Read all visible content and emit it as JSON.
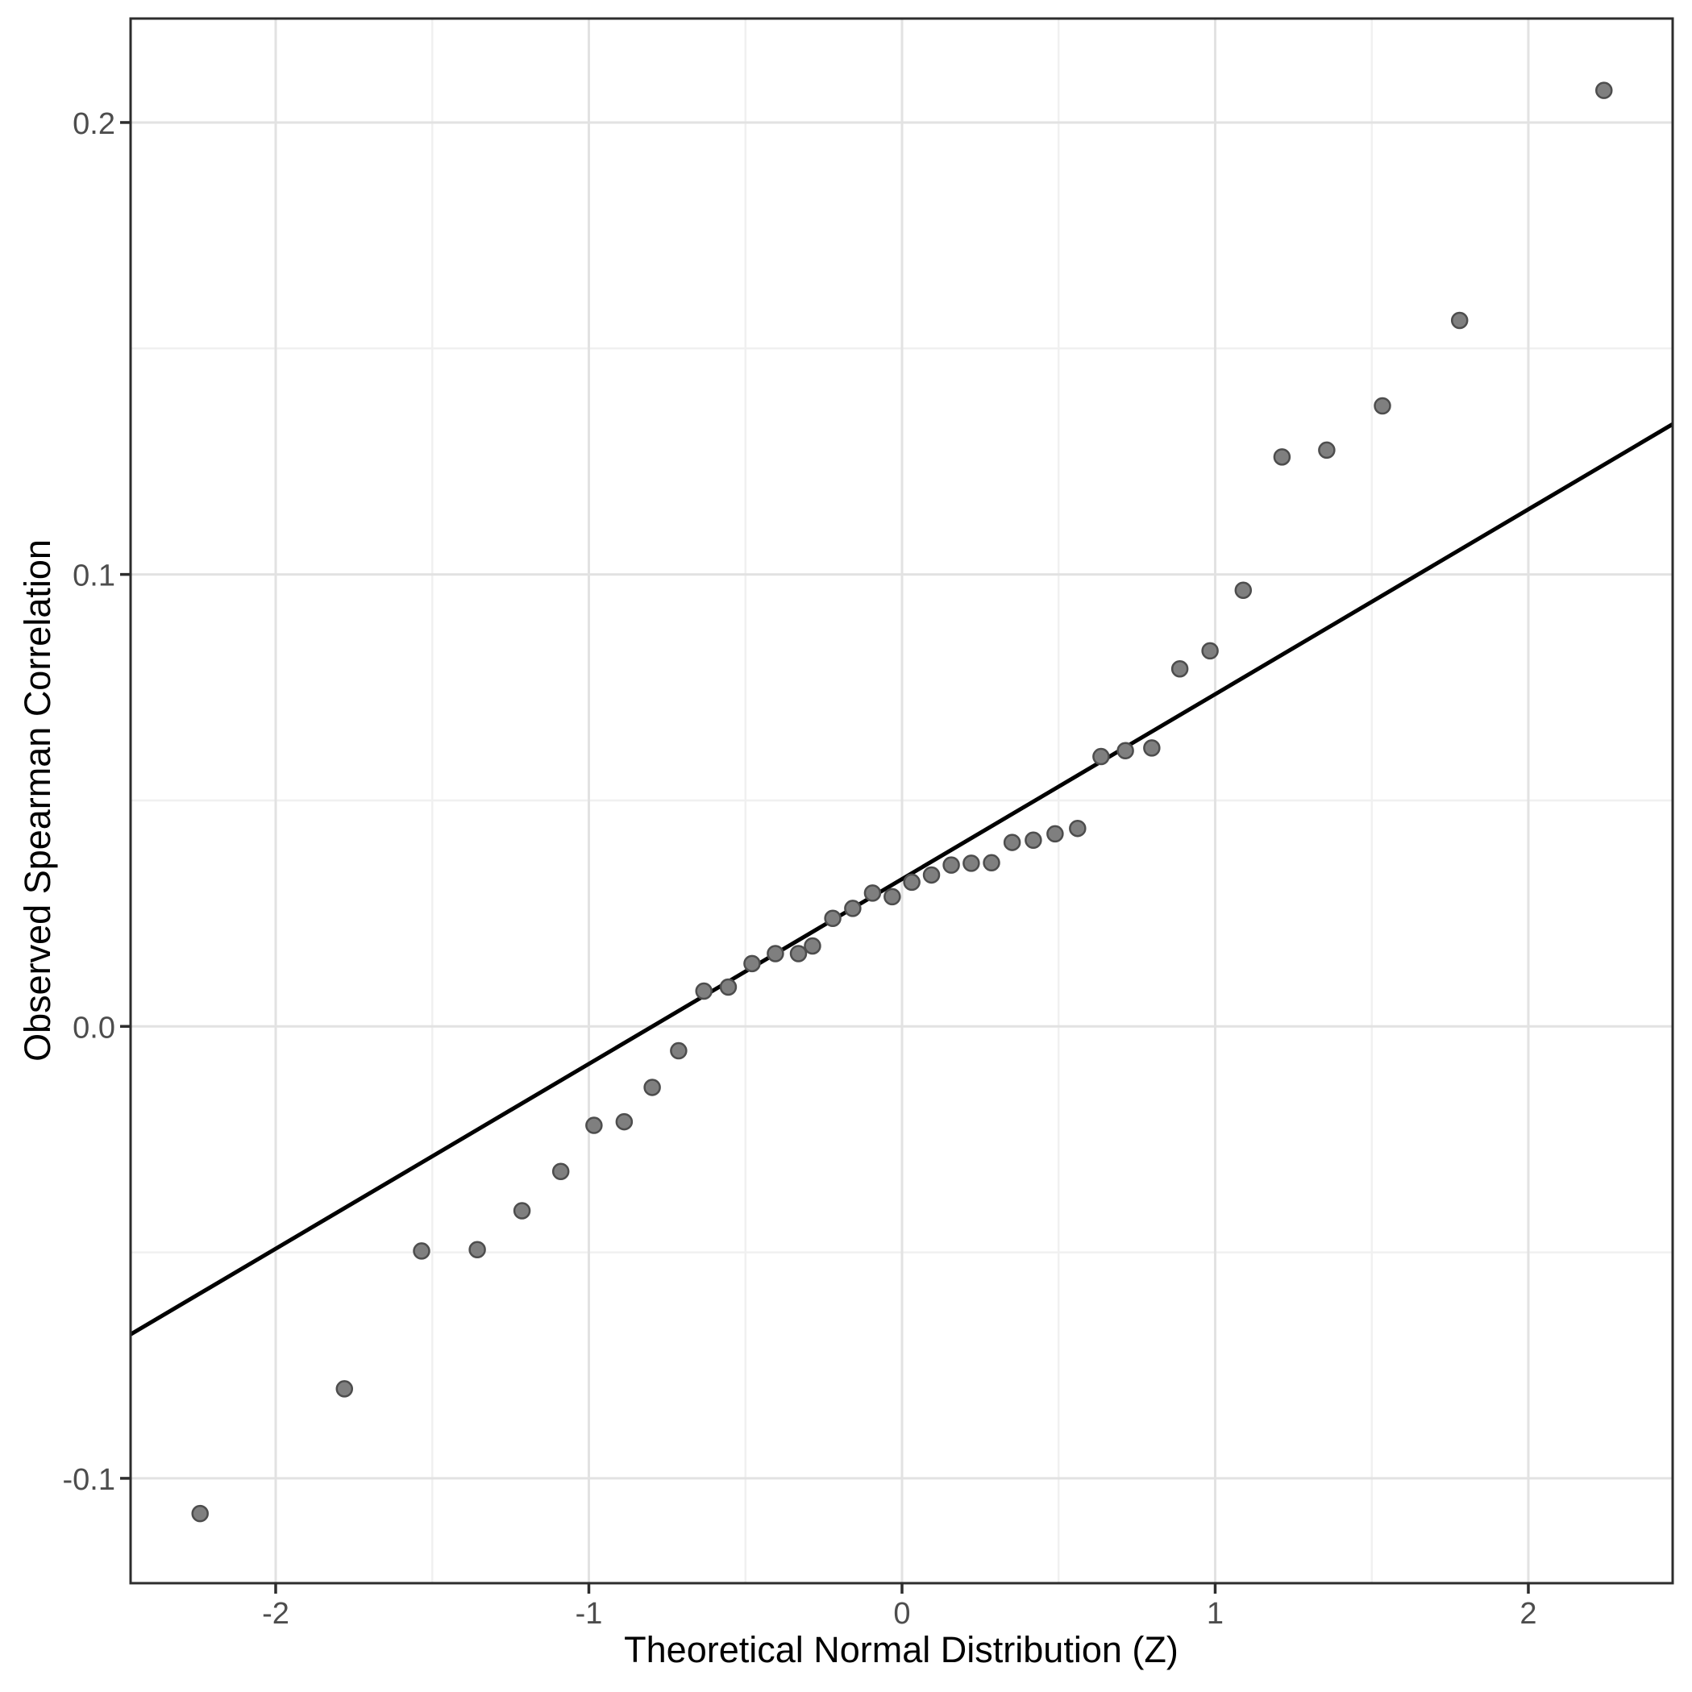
{
  "chart_data": {
    "type": "scatter",
    "variant": "qq_plot",
    "title": "",
    "xlabel": "Theoretical Normal Distribution (Z)",
    "ylabel": "Observed Spearman Correlation",
    "xlim": [
      -2.4633,
      2.4608
    ],
    "ylim": [
      -0.1232,
      0.223
    ],
    "x_major_ticks": [
      -2,
      -1,
      0,
      1,
      2
    ],
    "x_tick_labels": [
      "-2",
      "-1",
      "0",
      "1",
      "2"
    ],
    "x_minor_gridlines": [
      -1.5,
      -0.5,
      0.5,
      1.5
    ],
    "y_major_ticks": [
      -0.1,
      0.0,
      0.1,
      0.2
    ],
    "y_tick_labels": [
      "-0.1",
      "0.0",
      "0.1",
      "0.2"
    ],
    "y_minor_gridlines": [
      -0.05,
      0.05,
      0.15
    ],
    "grid": true,
    "legend": false,
    "points": [
      [
        -2.2414,
        -0.1078
      ],
      [
        -1.7805,
        -0.0802
      ],
      [
        -1.5341,
        -0.0497
      ],
      [
        -1.3562,
        -0.0494
      ],
      [
        -1.2134,
        -0.0408
      ],
      [
        -1.0896,
        -0.0321
      ],
      [
        -0.9836,
        -0.0219
      ],
      [
        -0.8871,
        -0.0211
      ],
      [
        -0.7976,
        -0.0135
      ],
      [
        -0.7133,
        -0.0054
      ],
      [
        -0.6326,
        0.0078
      ],
      [
        -0.5548,
        0.0087
      ],
      [
        -0.4789,
        0.0139
      ],
      [
        -0.4043,
        0.0161
      ],
      [
        -0.3307,
        0.0161
      ],
      [
        -0.2858,
        0.0178
      ],
      [
        -0.2211,
        0.0239
      ],
      [
        -0.1573,
        0.0261
      ],
      [
        -0.0941,
        0.0295
      ],
      [
        -0.0313,
        0.0287
      ],
      [
        0.0313,
        0.0319
      ],
      [
        0.0941,
        0.0335
      ],
      [
        0.1573,
        0.0357
      ],
      [
        0.2211,
        0.0361
      ],
      [
        0.2858,
        0.0362
      ],
      [
        0.3517,
        0.0407
      ],
      [
        0.4193,
        0.0412
      ],
      [
        0.4888,
        0.0426
      ],
      [
        0.5607,
        0.0438
      ],
      [
        0.6355,
        0.0597
      ],
      [
        0.7133,
        0.061
      ],
      [
        0.7976,
        0.0616
      ],
      [
        0.8871,
        0.0791
      ],
      [
        0.9836,
        0.0831
      ],
      [
        1.0896,
        0.0965
      ],
      [
        1.2134,
        0.126
      ],
      [
        1.3562,
        0.1275
      ],
      [
        1.5341,
        0.1373
      ],
      [
        1.7805,
        0.1562
      ],
      [
        2.2414,
        0.2071
      ]
    ],
    "reference_line": {
      "slope": 0.0409,
      "intercept": 0.0326
    },
    "style": {
      "point_fill": "#7F7F7F",
      "point_stroke": "#4D4D4D",
      "line_color": "#000000",
      "grid_major_color": "#E2E2E2",
      "grid_minor_color": "#F0F0F0",
      "panel_border_color": "#2D2D2D",
      "tick_color": "#2D2D2D",
      "tick_label_color": "#4D4D4D",
      "axis_title_color": "#000000",
      "background": "#FFFFFF"
    }
  }
}
